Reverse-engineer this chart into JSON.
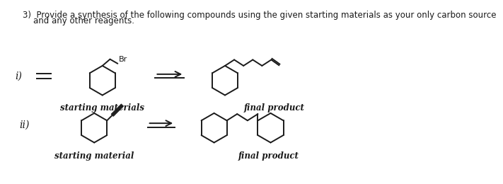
{
  "title_line1": "3)  Provide a synthesis of the following compounds using the given starting materials as your only carbon source",
  "title_line2": "    and any other reagents.",
  "label_i": "i)",
  "label_ii": "ii)",
  "label_sm_i": "starting materials",
  "label_fp_i": "final product",
  "label_sm_ii": "starting material",
  "label_fp_ii": "final product",
  "label_br": "Br",
  "bg_color": "#ffffff",
  "line_color": "#1a1a1a",
  "text_color": "#1a1a1a",
  "font_size_title": 8.5,
  "font_size_label": 8.5,
  "font_size_roman": 10
}
